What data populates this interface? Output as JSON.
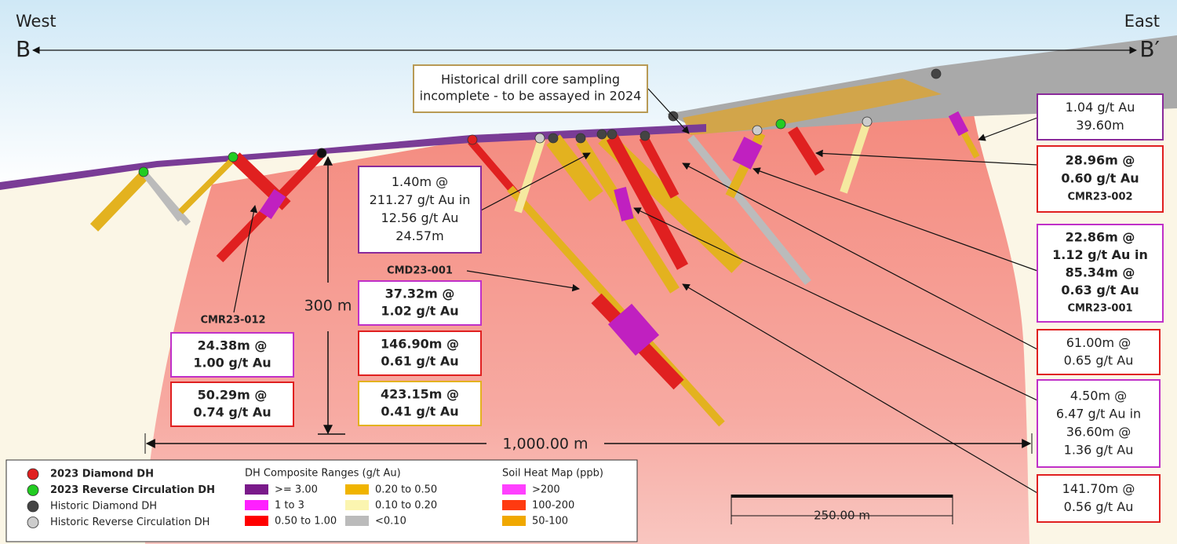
{
  "section": {
    "west": "West",
    "east": "East",
    "start": "B",
    "end": "B′"
  },
  "callout": [
    "Historical drill core sampling",
    "incomplete - to be assayed in 2024"
  ],
  "intercepts": [
    {
      "lines": [
        "1.04 g/t Au",
        "39.60m"
      ]
    },
    {
      "lines": [
        "28.96m @",
        "0.60 g/t Au",
        "CMR23-002"
      ]
    },
    {
      "lines": [
        "22.86m @",
        "1.12 g/t Au in",
        "85.34m @",
        "0.63 g/t Au",
        "CMR23-001"
      ]
    },
    {
      "lines": [
        "61.00m @",
        "0.65 g/t Au"
      ]
    },
    {
      "lines": [
        "4.50m @",
        "6.47 g/t  Au in",
        "36.60m  @",
        "1.36 g/t Au"
      ]
    },
    {
      "lines": [
        "141.70m @",
        "0.56 g/t Au"
      ]
    },
    {
      "lines": [
        "1.40m @",
        "211.27 g/t Au in",
        "12.56 g/t Au",
        "24.57m"
      ]
    },
    {
      "lines": [
        "37.32m @",
        "1.02 g/t Au"
      ]
    },
    {
      "lines": [
        "146.90m @",
        "0.61 g/t Au"
      ]
    },
    {
      "lines": [
        "423.15m @",
        "0.41 g/t Au"
      ]
    },
    {
      "lines": [
        "24.38m @",
        "1.00 g/t Au"
      ]
    },
    {
      "lines": [
        "50.29m @",
        "0.74 g/t Au"
      ]
    }
  ],
  "hole_labels": [
    "CMD23-001",
    "CMR23-012"
  ],
  "scale": {
    "vertical": "300 m",
    "horizontal": "1,000.00 m",
    "bar": "250.00 m"
  },
  "legend": {
    "drill_holes": [
      "2023 Diamond DH",
      "2023 Reverse Circulation DH",
      "Historic Diamond DH",
      "Historic Reverse Circulation DH"
    ],
    "composite": {
      "title": "DH Composite Ranges (g/t Au)",
      "items": [
        ">= 3.00",
        "1 to 3",
        "0.50 to 1.00",
        "0.20 to 0.50",
        "0.10 to 0.20",
        "<0.10"
      ]
    },
    "soil": {
      "title": "Soil Heat Map (ppb)",
      "items": [
        ">200",
        "100-200",
        "50-100"
      ]
    }
  }
}
